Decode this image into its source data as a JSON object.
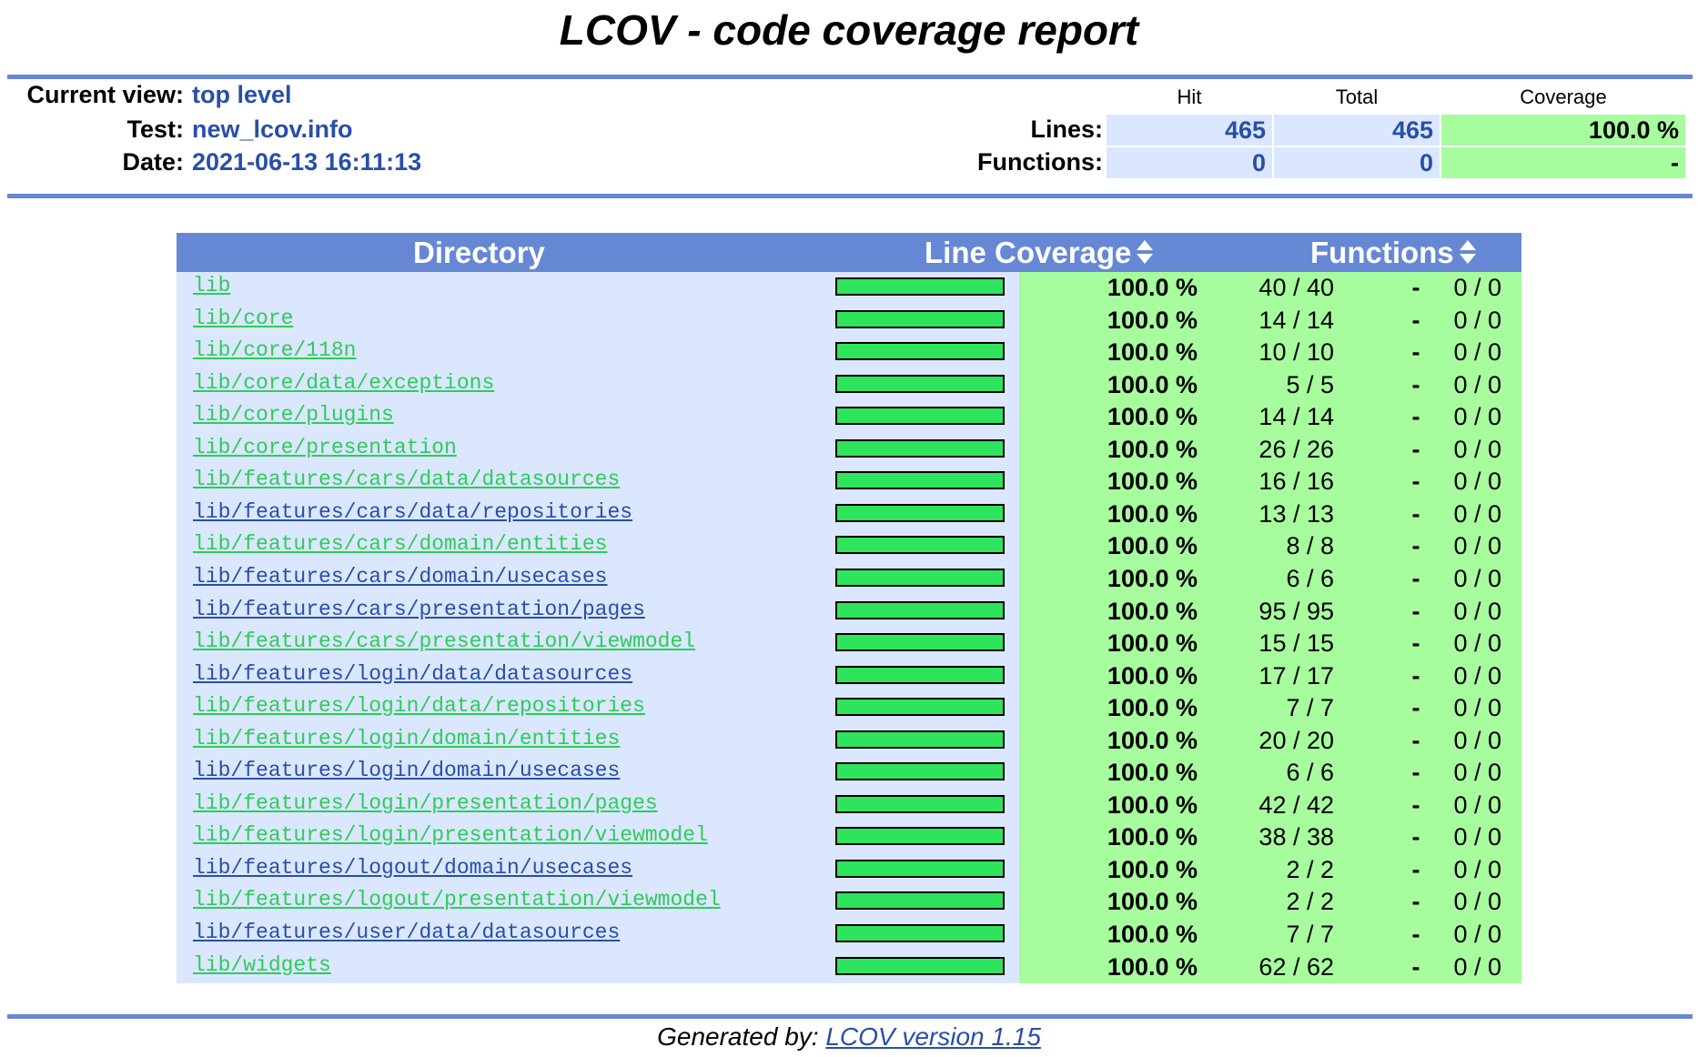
{
  "title": "LCOV - code coverage report",
  "info": {
    "current_view_label": "Current view:",
    "current_view_value": "top level",
    "test_label": "Test:",
    "test_value": "new_lcov.info",
    "date_label": "Date:",
    "date_value": "2021-06-13 16:11:13"
  },
  "summary": {
    "headers": {
      "hit": "Hit",
      "total": "Total",
      "coverage": "Coverage"
    },
    "lines": {
      "label": "Lines:",
      "hit": "465",
      "total": "465",
      "coverage": "100.0 %"
    },
    "functions": {
      "label": "Functions:",
      "hit": "0",
      "total": "0",
      "coverage": "-"
    }
  },
  "table": {
    "headers": {
      "directory": "Directory",
      "line_coverage": "Line Coverage",
      "functions": "Functions"
    },
    "rows": [
      {
        "dir": "lib",
        "pct": "100.0 %",
        "lines": "40 / 40",
        "func_rate": "-",
        "funcs": "0 / 0",
        "visited": true
      },
      {
        "dir": "lib/core",
        "pct": "100.0 %",
        "lines": "14 / 14",
        "func_rate": "-",
        "funcs": "0 / 0",
        "visited": true
      },
      {
        "dir": "lib/core/118n",
        "pct": "100.0 %",
        "lines": "10 / 10",
        "func_rate": "-",
        "funcs": "0 / 0",
        "visited": true
      },
      {
        "dir": "lib/core/data/exceptions",
        "pct": "100.0 %",
        "lines": "5 / 5",
        "func_rate": "-",
        "funcs": "0 / 0",
        "visited": true
      },
      {
        "dir": "lib/core/plugins",
        "pct": "100.0 %",
        "lines": "14 / 14",
        "func_rate": "-",
        "funcs": "0 / 0",
        "visited": true
      },
      {
        "dir": "lib/core/presentation",
        "pct": "100.0 %",
        "lines": "26 / 26",
        "func_rate": "-",
        "funcs": "0 / 0",
        "visited": true
      },
      {
        "dir": "lib/features/cars/data/datasources",
        "pct": "100.0 %",
        "lines": "16 / 16",
        "func_rate": "-",
        "funcs": "0 / 0",
        "visited": true
      },
      {
        "dir": "lib/features/cars/data/repositories",
        "pct": "100.0 %",
        "lines": "13 / 13",
        "func_rate": "-",
        "funcs": "0 / 0",
        "visited": false
      },
      {
        "dir": "lib/features/cars/domain/entities",
        "pct": "100.0 %",
        "lines": "8 / 8",
        "func_rate": "-",
        "funcs": "0 / 0",
        "visited": true
      },
      {
        "dir": "lib/features/cars/domain/usecases",
        "pct": "100.0 %",
        "lines": "6 / 6",
        "func_rate": "-",
        "funcs": "0 / 0",
        "visited": false
      },
      {
        "dir": "lib/features/cars/presentation/pages",
        "pct": "100.0 %",
        "lines": "95 / 95",
        "func_rate": "-",
        "funcs": "0 / 0",
        "visited": false
      },
      {
        "dir": "lib/features/cars/presentation/viewmodel",
        "pct": "100.0 %",
        "lines": "15 / 15",
        "func_rate": "-",
        "funcs": "0 / 0",
        "visited": true
      },
      {
        "dir": "lib/features/login/data/datasources",
        "pct": "100.0 %",
        "lines": "17 / 17",
        "func_rate": "-",
        "funcs": "0 / 0",
        "visited": false
      },
      {
        "dir": "lib/features/login/data/repositories",
        "pct": "100.0 %",
        "lines": "7 / 7",
        "func_rate": "-",
        "funcs": "0 / 0",
        "visited": true
      },
      {
        "dir": "lib/features/login/domain/entities",
        "pct": "100.0 %",
        "lines": "20 / 20",
        "func_rate": "-",
        "funcs": "0 / 0",
        "visited": true
      },
      {
        "dir": "lib/features/login/domain/usecases",
        "pct": "100.0 %",
        "lines": "6 / 6",
        "func_rate": "-",
        "funcs": "0 / 0",
        "visited": false
      },
      {
        "dir": "lib/features/login/presentation/pages",
        "pct": "100.0 %",
        "lines": "42 / 42",
        "func_rate": "-",
        "funcs": "0 / 0",
        "visited": true
      },
      {
        "dir": "lib/features/login/presentation/viewmodel",
        "pct": "100.0 %",
        "lines": "38 / 38",
        "func_rate": "-",
        "funcs": "0 / 0",
        "visited": true
      },
      {
        "dir": "lib/features/logout/domain/usecases",
        "pct": "100.0 %",
        "lines": "2 / 2",
        "func_rate": "-",
        "funcs": "0 / 0",
        "visited": false
      },
      {
        "dir": "lib/features/logout/presentation/viewmodel",
        "pct": "100.0 %",
        "lines": "2 / 2",
        "func_rate": "-",
        "funcs": "0 / 0",
        "visited": true
      },
      {
        "dir": "lib/features/user/data/datasources",
        "pct": "100.0 %",
        "lines": "7 / 7",
        "func_rate": "-",
        "funcs": "0 / 0",
        "visited": false
      },
      {
        "dir": "lib/widgets",
        "pct": "100.0 %",
        "lines": "62 / 62",
        "func_rate": "-",
        "funcs": "0 / 0",
        "visited": true
      }
    ]
  },
  "colors": {
    "header_blue": "#6688d4",
    "cell_blue": "#dae7fe",
    "cell_green": "#a7fc9d",
    "bar_green": "#2ee45c",
    "link_unvisited": "#284fa8",
    "link_visited": "#2ecc5a"
  },
  "footer": {
    "prefix": "Generated by: ",
    "link": "LCOV version 1.15"
  }
}
